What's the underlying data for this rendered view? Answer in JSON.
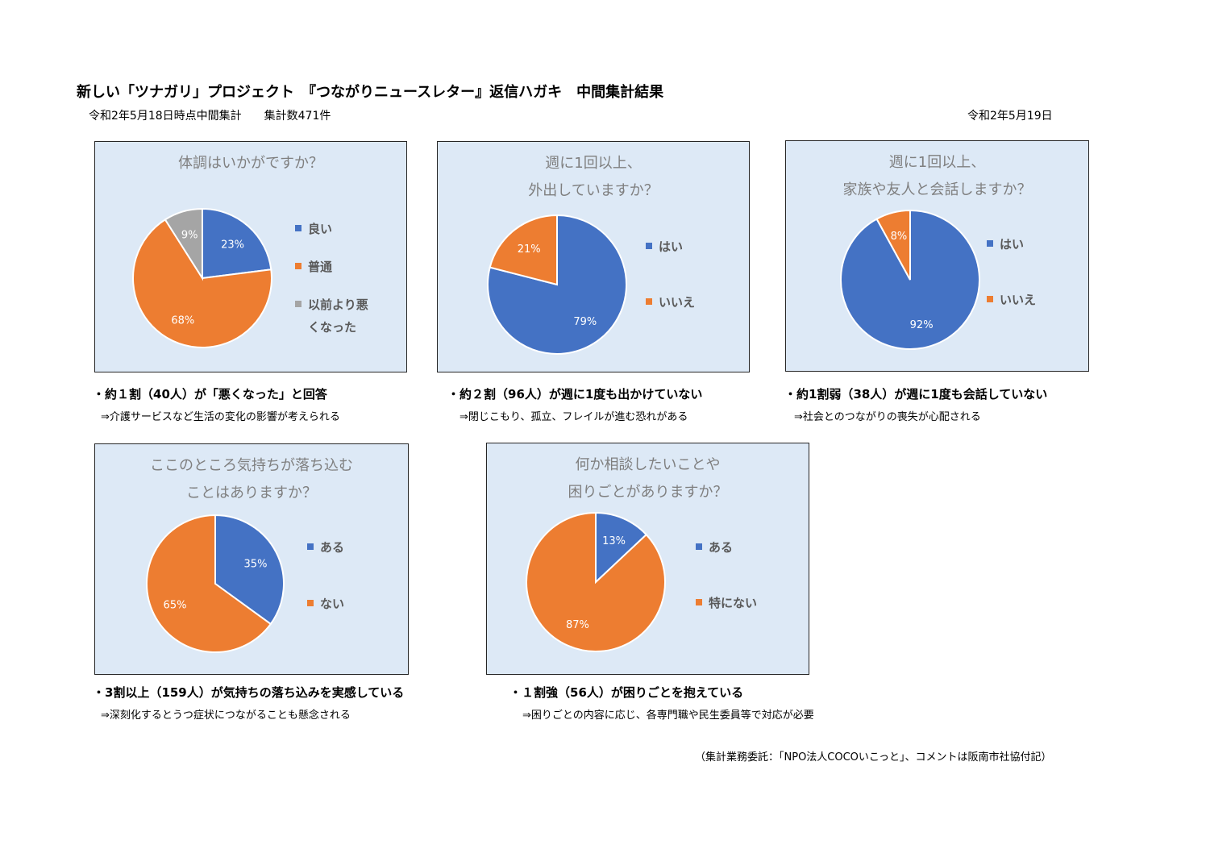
{
  "header": {
    "title": "新しい「ツナガリ」プロジェクト　『つながりニュースレター』返信ハガキ　中間集計結果",
    "subtitle": "令和2年5月18日時点中間集計　　集計数471件",
    "date": "令和2年5月19日"
  },
  "colors": {
    "blue": "#4472c4",
    "orange": "#ed7d31",
    "gray": "#a5a5a5",
    "panel_bg": "#dde9f6"
  },
  "panels": [
    {
      "title_lines": [
        "体調はいかがですか？"
      ],
      "legend": [
        {
          "label": "良い",
          "color": "#4472c4"
        },
        {
          "label": "普通",
          "color": "#ed7d31"
        },
        {
          "label": "以前より悪\nくなった",
          "color": "#a5a5a5"
        }
      ],
      "note": "・約１割（40人）が「悪くなった」と回答",
      "sub_note": "⇒介護サービスなど生活の変化の影響が考えられる"
    },
    {
      "title_lines": [
        "週に1回以上、",
        "外出していますか？"
      ],
      "legend": [
        {
          "label": "はい",
          "color": "#4472c4"
        },
        {
          "label": "いいえ",
          "color": "#ed7d31"
        }
      ],
      "note": "・約２割（96人）が週に1度も出かけていない",
      "sub_note": "⇒閉じこもり、孤立、フレイルが進む恐れがある"
    },
    {
      "title_lines": [
        "週に1回以上、",
        "家族や友人と会話しますか？"
      ],
      "legend": [
        {
          "label": "はい",
          "color": "#4472c4"
        },
        {
          "label": "いいえ",
          "color": "#ed7d31"
        }
      ],
      "note": "・約1割弱（38人）が週に1度も会話していない",
      "sub_note": "⇒社会とのつながりの喪失が心配される"
    },
    {
      "title_lines": [
        "ここのところ気持ちが落ち込む",
        "ことはありますか？"
      ],
      "legend": [
        {
          "label": "ある",
          "color": "#4472c4"
        },
        {
          "label": "ない",
          "color": "#ed7d31"
        }
      ],
      "note": "・3割以上（159人）が気持ちの落ち込みを実感している",
      "sub_note": "⇒深刻化するとうつ症状につながることも懸念される"
    },
    {
      "title_lines": [
        "何か相談したいことや",
        "困りごとがありますか？"
      ],
      "legend": [
        {
          "label": "ある",
          "color": "#4472c4"
        },
        {
          "label": "特にない",
          "color": "#ed7d31"
        }
      ],
      "note": "・１割強（56人）が困りごとを抱えている",
      "sub_note": "⇒困りごとの内容に応じ、各専門職や民生委員等で対応が必要"
    }
  ],
  "footer": "（集計業務委託：「NPO法人COCOいこっと」、コメントは阪南市社協付記）",
  "chart_data": [
    {
      "type": "pie",
      "title": "体調はいかがですか？",
      "categories": [
        "良い",
        "普通",
        "以前より悪くなった"
      ],
      "values": [
        23,
        68,
        9
      ],
      "labels": [
        "23%",
        "68%",
        "9%"
      ]
    },
    {
      "type": "pie",
      "title": "週に1回以上、外出していますか？",
      "categories": [
        "はい",
        "いいえ"
      ],
      "values": [
        79,
        21
      ],
      "labels": [
        "79%",
        "21%"
      ]
    },
    {
      "type": "pie",
      "title": "週に1回以上、家族や友人と会話しますか？",
      "categories": [
        "はい",
        "いいえ"
      ],
      "values": [
        92,
        8
      ],
      "labels": [
        "92%",
        "8%"
      ]
    },
    {
      "type": "pie",
      "title": "ここのところ気持ちが落ち込むことはありますか？",
      "categories": [
        "ある",
        "ない"
      ],
      "values": [
        35,
        65
      ],
      "labels": [
        "35%",
        "65%"
      ]
    },
    {
      "type": "pie",
      "title": "何か相談したいことや困りごとがありますか？",
      "categories": [
        "ある",
        "特にない"
      ],
      "values": [
        13,
        87
      ],
      "labels": [
        "13%",
        "87%"
      ]
    }
  ]
}
